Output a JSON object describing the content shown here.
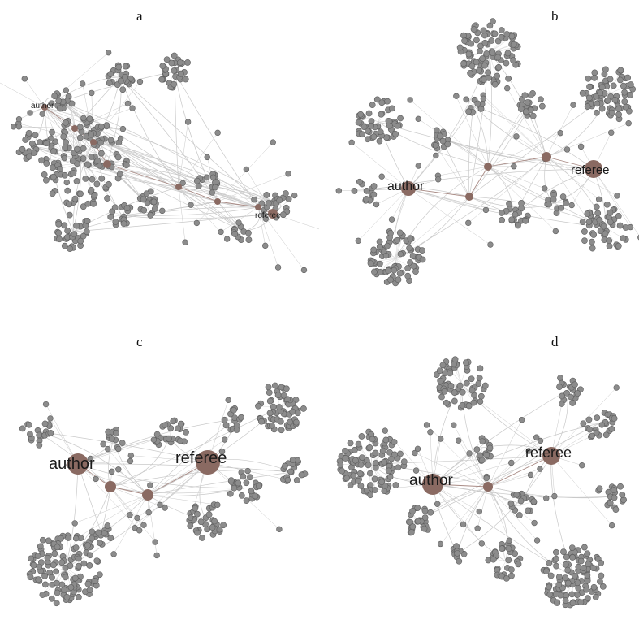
{
  "figure": {
    "panels": [
      {
        "id": "a",
        "letter": "a",
        "author_label": "author",
        "referee_label": "referee"
      },
      {
        "id": "b",
        "letter": "b",
        "author_label": "author",
        "referee_label": "referee"
      },
      {
        "id": "c",
        "letter": "c",
        "author_label": "author",
        "referee_label": "referee"
      },
      {
        "id": "d",
        "letter": "d",
        "author_label": "author",
        "referee_label": "referee"
      }
    ]
  },
  "colors": {
    "hub_node": "#8a6a62",
    "leaf_node": "#8c8c8c",
    "leaf_stroke": "#5e5e5e",
    "edge": "#c9c9c9",
    "background": "#ffffff"
  }
}
